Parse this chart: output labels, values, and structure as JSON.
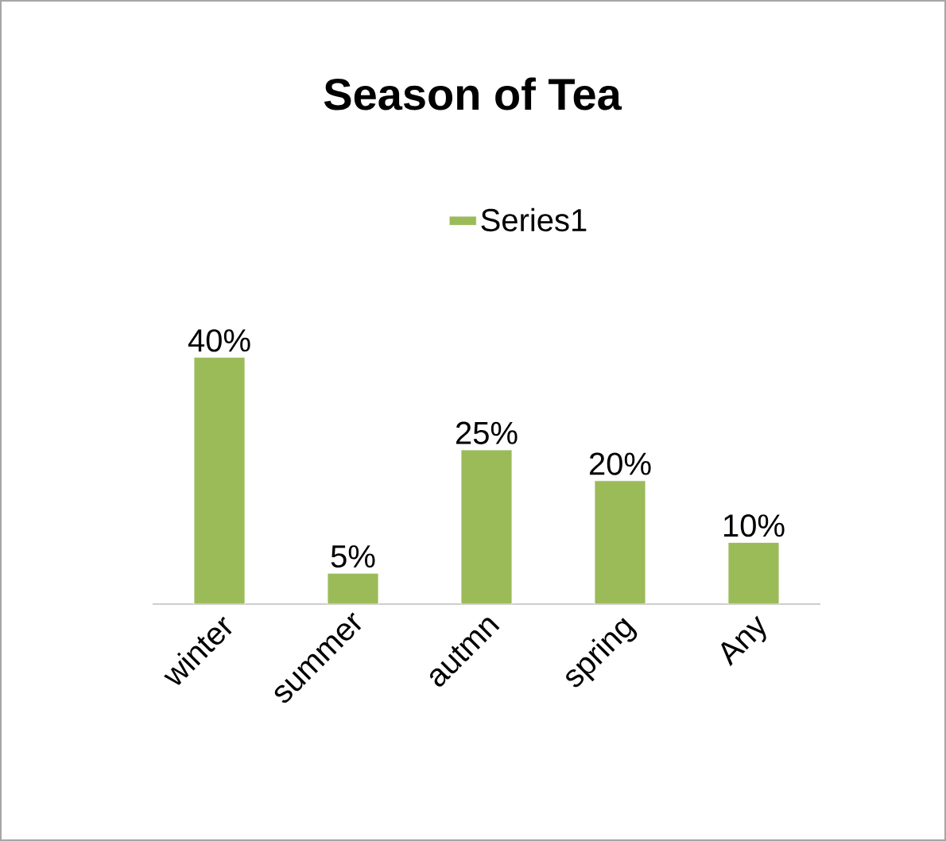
{
  "chart_data": {
    "type": "bar",
    "title": "Season of Tea",
    "categories": [
      "winter",
      "summer",
      "autmn",
      "spring",
      "Any"
    ],
    "series": [
      {
        "name": "Series1",
        "color": "#9bbb59",
        "values": [
          40,
          5,
          25,
          20,
          10
        ],
        "value_labels": [
          "40%",
          "5%",
          "25%",
          "20%",
          "10%"
        ]
      }
    ],
    "legend": "top"
  }
}
